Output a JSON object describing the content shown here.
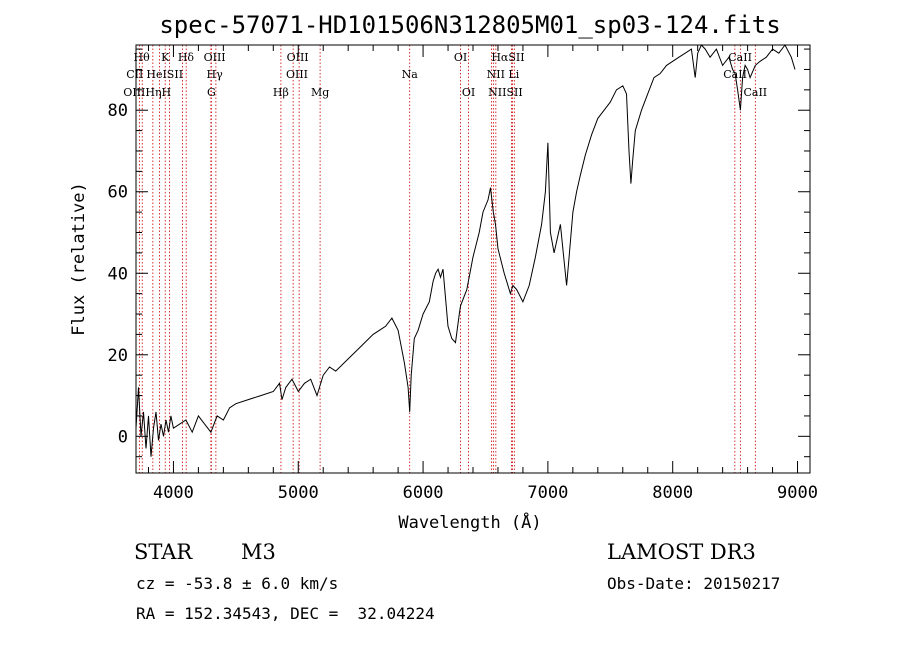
{
  "chart_data": {
    "type": "line",
    "title": "spec-57071-HD101506N312805M01_sp03-124.fits",
    "xlabel": "Wavelength (Å)",
    "ylabel": "Flux (relative)",
    "xlim": [
      3700,
      9100
    ],
    "ylim": [
      -9,
      96
    ],
    "xticks": [
      4000,
      5000,
      6000,
      7000,
      8000,
      9000
    ],
    "xtick_labels": [
      "4000",
      "5000",
      "6000",
      "7000",
      "8000",
      "9000"
    ],
    "yticks": [
      0,
      20,
      40,
      60,
      80
    ],
    "ytick_labels": [
      "0",
      "20",
      "40",
      "60",
      "80"
    ],
    "grid": false,
    "series": [
      {
        "name": "spectrum",
        "x": [
          3700,
          3720,
          3740,
          3760,
          3780,
          3800,
          3820,
          3840,
          3860,
          3880,
          3900,
          3920,
          3940,
          3960,
          3980,
          4000,
          4050,
          4100,
          4150,
          4200,
          4250,
          4300,
          4350,
          4400,
          4450,
          4500,
          4600,
          4700,
          4800,
          4850,
          4870,
          4900,
          4950,
          5000,
          5050,
          5100,
          5150,
          5200,
          5250,
          5300,
          5400,
          5500,
          5600,
          5700,
          5750,
          5800,
          5850,
          5880,
          5893,
          5905,
          5930,
          5960,
          6000,
          6050,
          6080,
          6100,
          6120,
          6140,
          6160,
          6200,
          6230,
          6260,
          6290,
          6300,
          6350,
          6400,
          6450,
          6480,
          6520,
          6540,
          6563,
          6580,
          6600,
          6650,
          6700,
          6720,
          6750,
          6800,
          6850,
          6900,
          6950,
          6980,
          7000,
          7020,
          7050,
          7100,
          7130,
          7150,
          7170,
          7200,
          7230,
          7260,
          7300,
          7350,
          7400,
          7450,
          7500,
          7550,
          7600,
          7630,
          7650,
          7665,
          7680,
          7700,
          7750,
          7800,
          7850,
          7900,
          7950,
          8000,
          8050,
          8100,
          8150,
          8180,
          8200,
          8230,
          8260,
          8300,
          8350,
          8400,
          8450,
          8480,
          8500,
          8520,
          8542,
          8560,
          8580,
          8600,
          8620,
          8662,
          8700,
          8750,
          8800,
          8850,
          8900,
          8950,
          8980
        ],
        "values": [
          2,
          12,
          0,
          6,
          -3,
          5,
          -5,
          2,
          6,
          -1,
          3,
          0,
          4,
          1,
          5,
          2,
          3,
          4,
          1,
          5,
          3,
          1,
          5,
          4,
          7,
          8,
          9,
          10,
          11,
          13,
          9,
          12,
          14,
          11,
          13,
          14,
          10,
          15,
          17,
          16,
          19,
          22,
          25,
          27,
          29,
          26,
          18,
          12,
          6,
          15,
          24,
          26,
          30,
          33,
          38,
          40,
          41,
          39,
          41,
          27,
          24,
          23,
          30,
          32,
          36,
          44,
          50,
          55,
          58,
          61,
          55,
          52,
          46,
          40,
          35,
          37,
          36,
          33,
          37,
          44,
          52,
          60,
          72,
          50,
          45,
          52,
          43,
          37,
          44,
          55,
          60,
          64,
          69,
          74,
          78,
          80,
          82,
          85,
          86,
          84,
          70,
          62,
          68,
          75,
          80,
          84,
          88,
          89,
          91,
          92,
          93,
          94,
          95,
          88,
          94,
          96,
          95,
          93,
          95,
          91,
          93,
          90,
          89,
          85,
          80,
          88,
          91,
          90,
          88,
          91,
          92,
          93,
          95,
          94,
          96,
          93,
          90
        ]
      }
    ],
    "lines": [
      {
        "name": "CII",
        "wavelength": 3727
      },
      {
        "name": "Hθ",
        "wavelength": 3750
      },
      {
        "name": "Hη",
        "wavelength": 3835
      },
      {
        "name": "HeI",
        "wavelength": 3889
      },
      {
        "name": "K",
        "wavelength": 3934
      },
      {
        "name": "H",
        "wavelength": 3968
      },
      {
        "name": "SII",
        "wavelength": 4072
      },
      {
        "name": "Hδ",
        "wavelength": 4102
      },
      {
        "name": "OIII",
        "wavelength": 4300
      },
      {
        "name": "G",
        "wavelength": 4304
      },
      {
        "name": "Hγ",
        "wavelength": 4340
      },
      {
        "name": "Hβ",
        "wavelength": 4861
      },
      {
        "name": "OIII",
        "wavelength": 4959
      },
      {
        "name": "OIII",
        "wavelength": 5007
      },
      {
        "name": "Mg",
        "wavelength": 5175
      },
      {
        "name": "Na",
        "wavelength": 5893
      },
      {
        "name": "OI",
        "wavelength": 6300
      },
      {
        "name": "OI",
        "wavelength": 6364
      },
      {
        "name": "NII",
        "wavelength": 6548
      },
      {
        "name": "Hα",
        "wavelength": 6563
      },
      {
        "name": "NII",
        "wavelength": 6583
      },
      {
        "name": "Li",
        "wavelength": 6708
      },
      {
        "name": "SII",
        "wavelength": 6716
      },
      {
        "name": "SII",
        "wavelength": 6731
      },
      {
        "name": "CaII",
        "wavelength": 8498
      },
      {
        "name": "CaII",
        "wavelength": 8542
      },
      {
        "name": "CaII",
        "wavelength": 8662
      }
    ],
    "line_labels": [
      {
        "text": "Hθ",
        "wavelength": 3745,
        "row": 1
      },
      {
        "text": "K",
        "wavelength": 3934,
        "row": 1
      },
      {
        "text": "Hδ",
        "wavelength": 4100,
        "row": 1
      },
      {
        "text": "OIII",
        "wavelength": 4330,
        "row": 1
      },
      {
        "text": "OIII",
        "wavelength": 4995,
        "row": 1
      },
      {
        "text": "OI",
        "wavelength": 6300,
        "row": 1
      },
      {
        "text": "HαSII",
        "wavelength": 6680,
        "row": 1
      },
      {
        "text": "CaII",
        "wavelength": 8540,
        "row": 1
      },
      {
        "text": "CII",
        "wavelength": 3690,
        "row": 2
      },
      {
        "text": "HeISII",
        "wavelength": 3930,
        "row": 2
      },
      {
        "text": "Hγ",
        "wavelength": 4330,
        "row": 2
      },
      {
        "text": "OIII",
        "wavelength": 4990,
        "row": 2
      },
      {
        "text": "Na",
        "wavelength": 5893,
        "row": 2
      },
      {
        "text": "NII Li",
        "wavelength": 6640,
        "row": 2
      },
      {
        "text": "CaII",
        "wavelength": 8500,
        "row": 2
      },
      {
        "text": "OIIIHηH",
        "wavelength": 3790,
        "row": 3
      },
      {
        "text": "G",
        "wavelength": 4304,
        "row": 3
      },
      {
        "text": "Hβ",
        "wavelength": 4861,
        "row": 3
      },
      {
        "text": "Mg",
        "wavelength": 5175,
        "row": 3
      },
      {
        "text": "OI",
        "wavelength": 6364,
        "row": 3
      },
      {
        "text": "NIISII",
        "wavelength": 6660,
        "row": 3
      },
      {
        "text": "CaII",
        "wavelength": 8662,
        "row": 3
      }
    ]
  },
  "info": {
    "object_class": "STAR",
    "subclass": "M3",
    "survey": "LAMOST DR3",
    "redshift": "cz = -53.8 ± 6.0 km/s",
    "obs_date": "Obs-Date: 20150217",
    "coords": "RA = 152.34543, DEC =  32.04224"
  },
  "colors": {
    "spectrum": "#000000",
    "line_marker": "#cc0000",
    "axes": "#000000"
  }
}
